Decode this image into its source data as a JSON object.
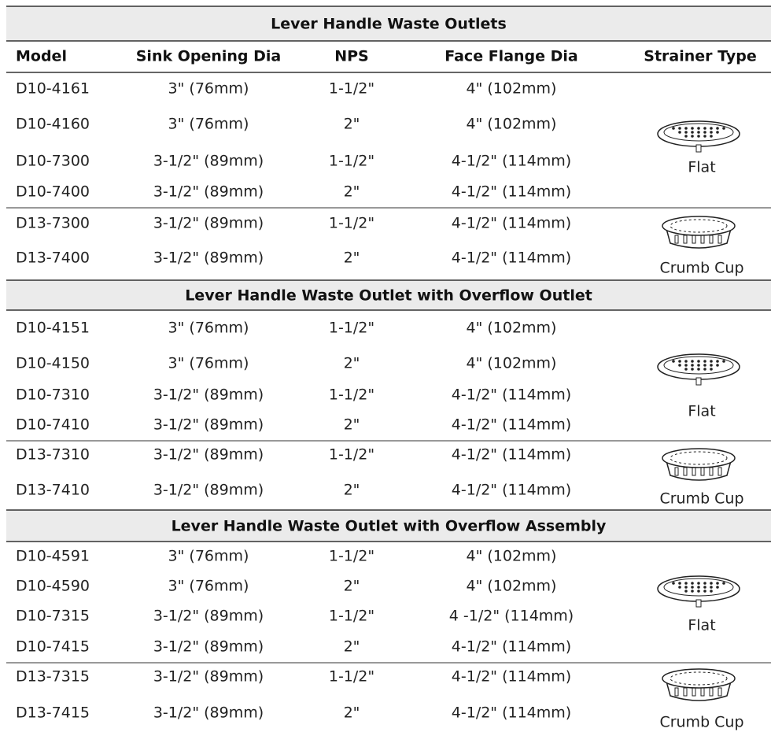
{
  "table": {
    "header": [
      "Model",
      "Sink Opening Dia",
      "NPS",
      "Face Flange Dia",
      "Strainer Type"
    ],
    "sections": [
      {
        "title": "Lever Handle Waste Outlets",
        "groups": [
          {
            "rows": [
              [
                "D10-4161",
                "3\" (76mm)",
                "1-1/2\"",
                "4\" (102mm)"
              ],
              [
                "D10-4160",
                "3\" (76mm)",
                "2\"",
                "4\" (102mm)"
              ],
              [
                "D10-7300",
                "3-1/2\" (89mm)",
                "1-1/2\"",
                "4-1/2\" (114mm)"
              ],
              [
                "D10-7400",
                "3-1/2\" (89mm)",
                "2\"",
                "4-1/2\" (114mm)"
              ]
            ],
            "strainer": "Flat"
          },
          {
            "rows": [
              [
                "D13-7300",
                "3-1/2\" (89mm)",
                "1-1/2\"",
                "4-1/2\" (114mm)"
              ],
              [
                "D13-7400",
                "3-1/2\" (89mm)",
                "2\"",
                "4-1/2\" (114mm)"
              ]
            ],
            "strainer": "Crumb Cup"
          }
        ]
      },
      {
        "title": "Lever Handle Waste Outlet with Overflow Outlet",
        "groups": [
          {
            "rows": [
              [
                "D10-4151",
                "3\" (76mm)",
                "1-1/2\"",
                "4\" (102mm)"
              ],
              [
                "D10-4150",
                "3\" (76mm)",
                "2\"",
                "4\" (102mm)"
              ],
              [
                "D10-7310",
                "3-1/2\" (89mm)",
                "1-1/2\"",
                "4-1/2\" (114mm)"
              ],
              [
                "D10-7410",
                "3-1/2\" (89mm)",
                "2\"",
                "4-1/2\" (114mm)"
              ]
            ],
            "strainer": "Flat"
          },
          {
            "rows": [
              [
                "D13-7310",
                "3-1/2\" (89mm)",
                "1-1/2\"",
                "4-1/2\" (114mm)"
              ],
              [
                "D13-7410",
                "3-1/2\" (89mm)",
                "2\"",
                "4-1/2\" (114mm)"
              ]
            ],
            "strainer": "Crumb Cup"
          }
        ]
      },
      {
        "title": "Lever Handle Waste Outlet with Overflow Assembly",
        "groups": [
          {
            "rows": [
              [
                "D10-4591",
                "3\" (76mm)",
                "1-1/2\"",
                "4\" (102mm)"
              ],
              [
                "D10-4590",
                "3\" (76mm)",
                "2\"",
                "4\" (102mm)"
              ],
              [
                "D10-7315",
                "3-1/2\" (89mm)",
                "1-1/2\"",
                "4 -1/2\" (114mm)"
              ],
              [
                "D10-7415",
                "3-1/2\" (89mm)",
                "2\"",
                "4-1/2\" (114mm)"
              ]
            ],
            "strainer": "Flat"
          },
          {
            "rows": [
              [
                "D13-7315",
                "3-1/2\" (89mm)",
                "1-1/2\"",
                "4-1/2\" (114mm)"
              ],
              [
                "D13-7415",
                "3-1/2\" (89mm)",
                "2\"",
                "4-1/2\" (114mm)"
              ]
            ],
            "strainer": "Crumb Cup"
          }
        ]
      }
    ]
  }
}
